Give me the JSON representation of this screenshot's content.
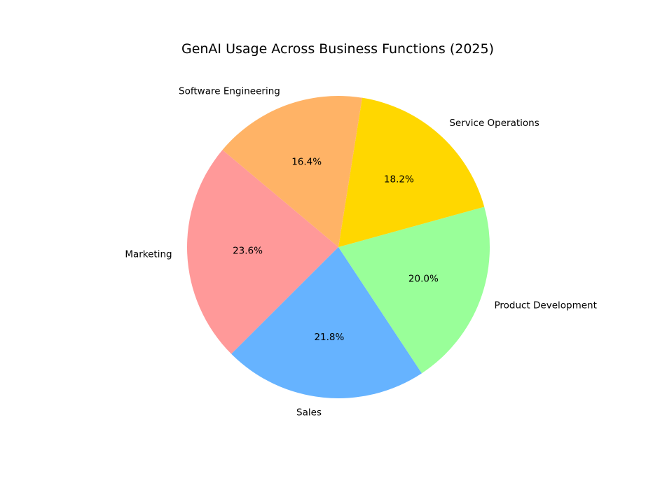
{
  "chart_data": {
    "type": "pie",
    "title": "GenAI Usage Across Business Functions (2025)",
    "categories": [
      "Marketing",
      "Sales",
      "Product Development",
      "Service Operations",
      "Software Engineering"
    ],
    "values": [
      23.6,
      21.8,
      20.0,
      18.2,
      16.4
    ],
    "percent_labels": [
      "23.6%",
      "21.8%",
      "20.0%",
      "18.2%",
      "16.4%"
    ],
    "colors": [
      "#ff9999",
      "#66b3ff",
      "#99ff99",
      "#ffd700",
      "#ffb366"
    ],
    "start_angle_deg": 140,
    "direction": "counterclockwise",
    "legend": "none"
  }
}
